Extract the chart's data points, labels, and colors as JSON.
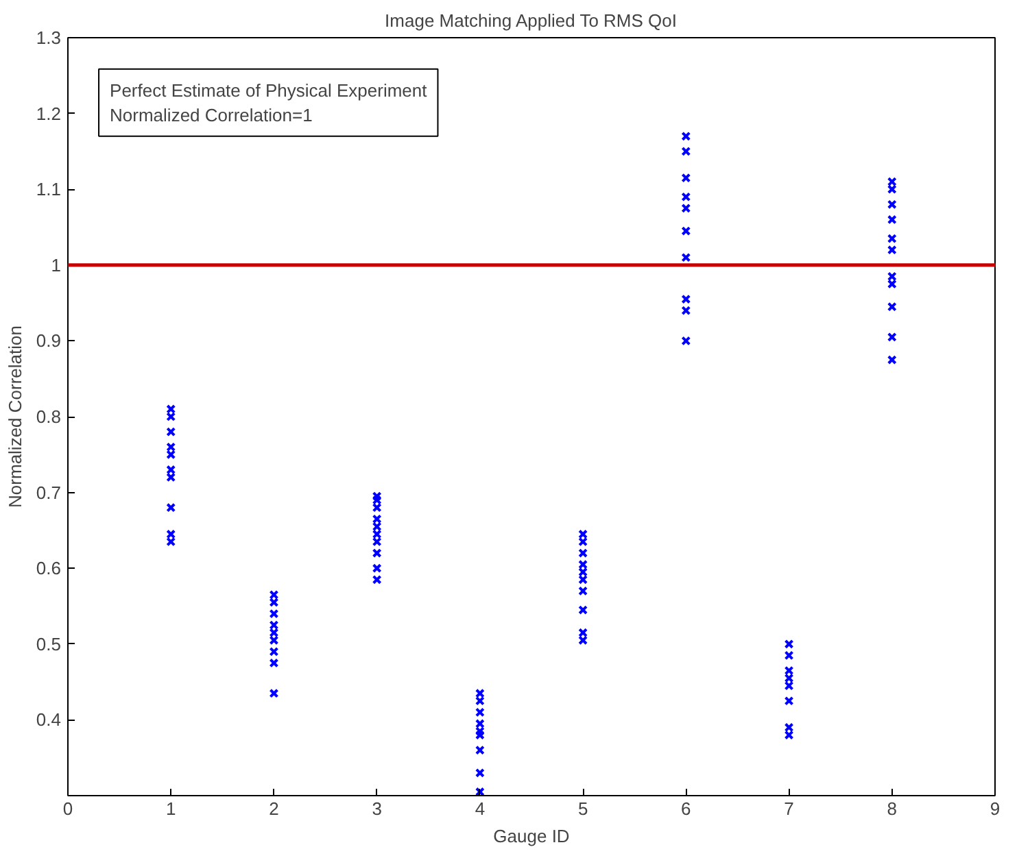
{
  "chart_data": {
    "type": "scatter",
    "title": "Image Matching Applied To RMS QoI",
    "xlabel": "Gauge ID",
    "ylabel": "Normalized Correlation",
    "xlim": [
      0,
      9
    ],
    "xticks": [
      0,
      1,
      2,
      3,
      4,
      5,
      6,
      7,
      8,
      9
    ],
    "ylim": [
      0.3,
      1.3
    ],
    "yticks": [
      {
        "value": 0.3,
        "label": null
      },
      0.4,
      0.5,
      0.6,
      0.7,
      0.8,
      0.9,
      1,
      1.1,
      1.2,
      1.3
    ],
    "grid": false,
    "marker": "cross",
    "series": [
      {
        "color": "#0000ff",
        "x": [
          1,
          1,
          1,
          1,
          1,
          1,
          1,
          1,
          1,
          1,
          2,
          2,
          2,
          2,
          2,
          2,
          2,
          2,
          2,
          3,
          3,
          3,
          3,
          3,
          3,
          3,
          3,
          3,
          3,
          4,
          4,
          4,
          4,
          4,
          4,
          4,
          4,
          4,
          5,
          5,
          5,
          5,
          5,
          5,
          5,
          5,
          5,
          5,
          6,
          6,
          6,
          6,
          6,
          6,
          6,
          6,
          6,
          6,
          7,
          7,
          7,
          7,
          7,
          7,
          7,
          7,
          8,
          8,
          8,
          8,
          8,
          8,
          8,
          8,
          8,
          8,
          8
        ],
        "values": [
          0.81,
          0.8,
          0.78,
          0.76,
          0.75,
          0.73,
          0.72,
          0.68,
          0.645,
          0.635,
          0.565,
          0.555,
          0.54,
          0.525,
          0.515,
          0.505,
          0.49,
          0.475,
          0.435,
          0.695,
          0.69,
          0.68,
          0.665,
          0.655,
          0.645,
          0.635,
          0.62,
          0.6,
          0.585,
          0.435,
          0.425,
          0.41,
          0.395,
          0.385,
          0.38,
          0.36,
          0.33,
          0.305,
          0.645,
          0.635,
          0.62,
          0.605,
          0.595,
          0.585,
          0.57,
          0.545,
          0.515,
          0.505,
          1.17,
          1.15,
          1.115,
          1.09,
          1.075,
          1.045,
          1.01,
          0.955,
          0.94,
          0.9,
          0.5,
          0.485,
          0.465,
          0.455,
          0.445,
          0.425,
          0.39,
          0.38,
          1.11,
          1.1,
          1.08,
          1.06,
          1.035,
          1.02,
          0.985,
          0.975,
          0.945,
          0.905,
          0.875
        ]
      }
    ],
    "ref_lines": [
      {
        "axis": "y",
        "value": 1,
        "color": "#cc0000"
      }
    ],
    "annotations": [
      "Perfect Estimate of Physical Experiment\nNormalized Correlation=1"
    ]
  }
}
